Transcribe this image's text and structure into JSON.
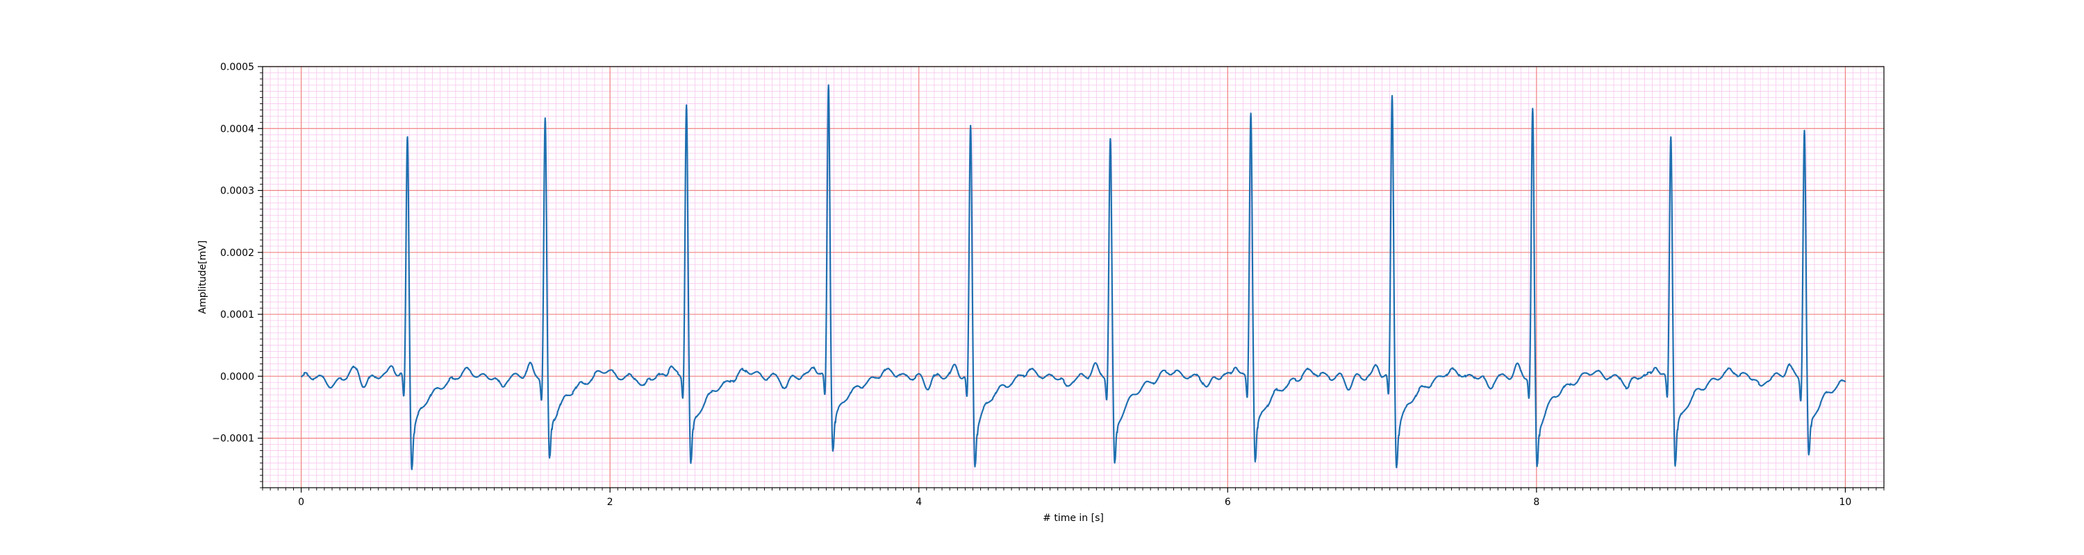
{
  "chart_data": {
    "type": "line",
    "title": "",
    "xlabel": "# time in [s]",
    "ylabel": "Amplitude[mV]",
    "xlim": [
      -0.25,
      10.25
    ],
    "ylim": [
      -0.00018,
      0.0005
    ],
    "x_ticks": [
      0,
      2,
      4,
      6,
      8,
      10
    ],
    "x_tick_labels": [
      "0",
      "2",
      "4",
      "6",
      "8",
      "10"
    ],
    "y_ticks": [
      -0.0001,
      0.0,
      0.0001,
      0.0002,
      0.0003,
      0.0004,
      0.0005
    ],
    "y_tick_labels": [
      "−0.0001",
      "0.0000",
      "0.0001",
      "0.0002",
      "0.0003",
      "0.0004",
      "0.0005"
    ],
    "grid": {
      "major": true,
      "minor": true,
      "major_color": "#f08080",
      "minor_color": "#f6c6ee"
    },
    "line_color": "#1f6fb0",
    "legend": "none",
    "series": [
      {
        "beats": [
          {
            "t": 0.688,
            "peak": 0.00039,
            "trough": -0.000148
          },
          {
            "t": 1.58,
            "peak": 0.000415,
            "trough": -0.000138
          },
          {
            "t": 2.495,
            "peak": 0.000443,
            "trough": -0.000145
          },
          {
            "t": 3.415,
            "peak": 0.000472,
            "trough": -0.00012
          },
          {
            "t": 4.335,
            "peak": 0.000402,
            "trough": -0.000143
          },
          {
            "t": 5.24,
            "peak": 0.000382,
            "trough": -0.000146
          },
          {
            "t": 6.15,
            "peak": 0.00043,
            "trough": -0.000141
          },
          {
            "t": 7.065,
            "peak": 0.000453,
            "trough": -0.000146
          },
          {
            "t": 7.975,
            "peak": 0.000428,
            "trough": -0.00015
          },
          {
            "t": 8.87,
            "peak": 0.00039,
            "trough": -0.000145
          },
          {
            "t": 9.735,
            "peak": 0.000398,
            "trough": -0.000133
          }
        ],
        "x_start": 0.0,
        "x_end": 10.0
      }
    ]
  }
}
